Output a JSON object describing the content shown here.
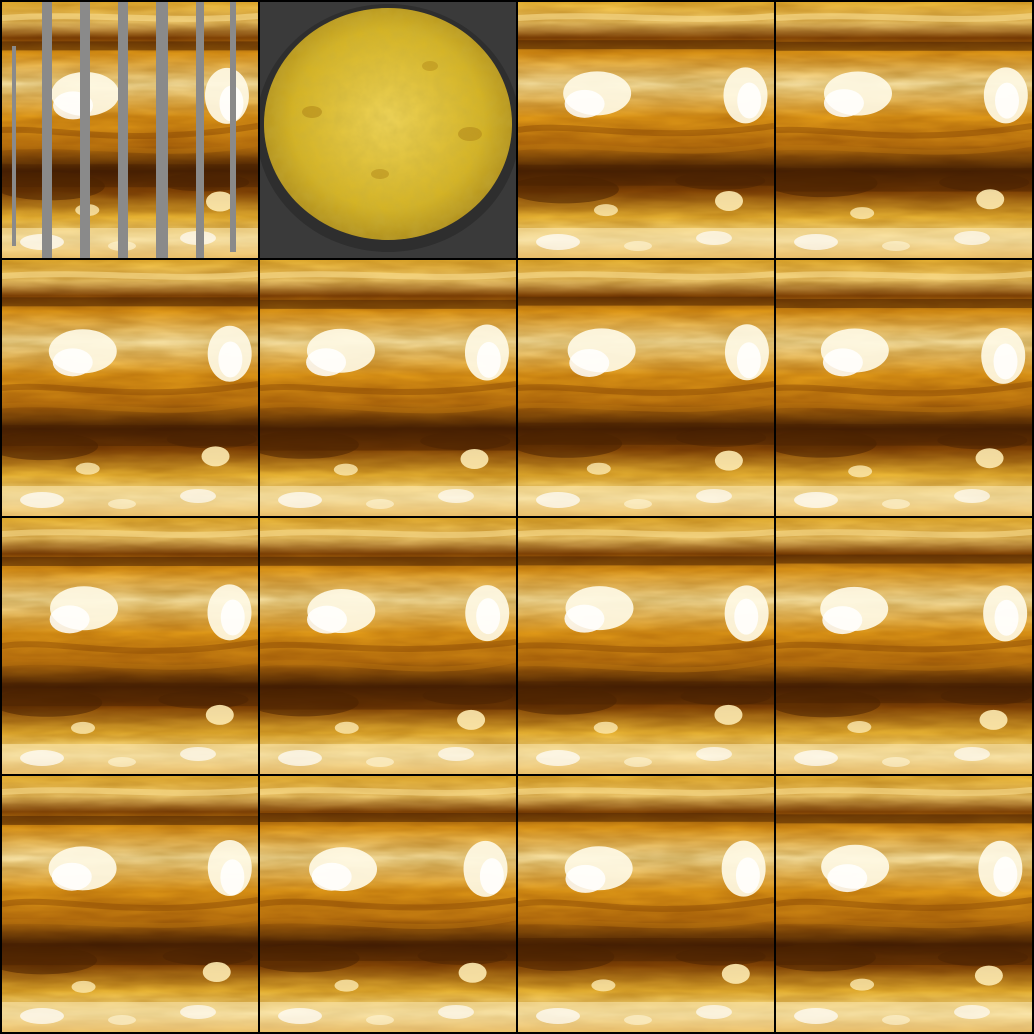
{
  "grid": {
    "rows": 4,
    "columns": 4
  },
  "tiles": [
    {
      "id": "masked-input",
      "kind": "masked-texture",
      "colors": {
        "mask": "#8a8a8a"
      }
    },
    {
      "id": "reference-photo",
      "kind": "dish-photo",
      "colors": {
        "dish": "#d6b423",
        "pan": "#2e2e2e",
        "background": "#3a3a3a"
      }
    },
    {
      "id": "sample-01",
      "kind": "texture"
    },
    {
      "id": "sample-02",
      "kind": "texture"
    },
    {
      "id": "sample-03",
      "kind": "texture"
    },
    {
      "id": "sample-04",
      "kind": "texture"
    },
    {
      "id": "sample-05",
      "kind": "texture"
    },
    {
      "id": "sample-06",
      "kind": "texture"
    },
    {
      "id": "sample-07",
      "kind": "texture"
    },
    {
      "id": "sample-08",
      "kind": "texture"
    },
    {
      "id": "sample-09",
      "kind": "texture"
    },
    {
      "id": "sample-10",
      "kind": "texture"
    },
    {
      "id": "sample-11",
      "kind": "texture"
    },
    {
      "id": "sample-12",
      "kind": "texture"
    },
    {
      "id": "sample-13",
      "kind": "texture"
    },
    {
      "id": "sample-14",
      "kind": "texture"
    }
  ],
  "palette": {
    "amber": "#e9a21a",
    "gold": "#f3c03a",
    "pale": "#fdeab0",
    "highlight": "#fffbe8",
    "brown": "#8a4a05",
    "dark": "#4a2202"
  }
}
